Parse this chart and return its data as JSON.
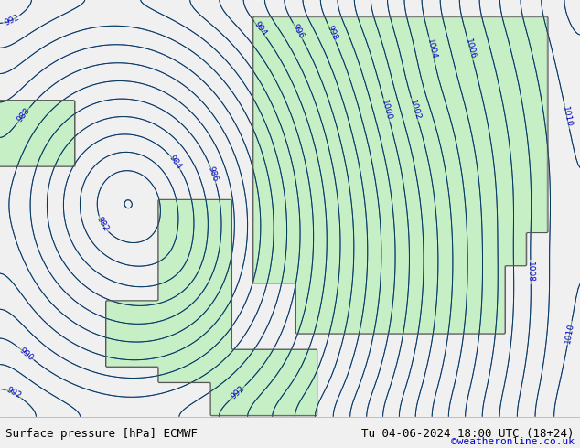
{
  "title_left": "Surface pressure [hPa] ECMWF",
  "title_right": "Tu 04-06-2024 18:00 UTC (18+24)",
  "copyright": "©weatheronline.co.uk",
  "bg_color": "#e8e8e8",
  "land_color": "#c8f0c8",
  "contour_color": "#0000cc",
  "border_color": "#555555",
  "footer_bg": "#f0f0f0",
  "footer_text_color": "#000000",
  "copyright_color": "#0000cc",
  "pressure_min": 980,
  "pressure_max": 1012,
  "pressure_step": 1,
  "figsize": [
    6.34,
    4.9
  ],
  "dpi": 100
}
